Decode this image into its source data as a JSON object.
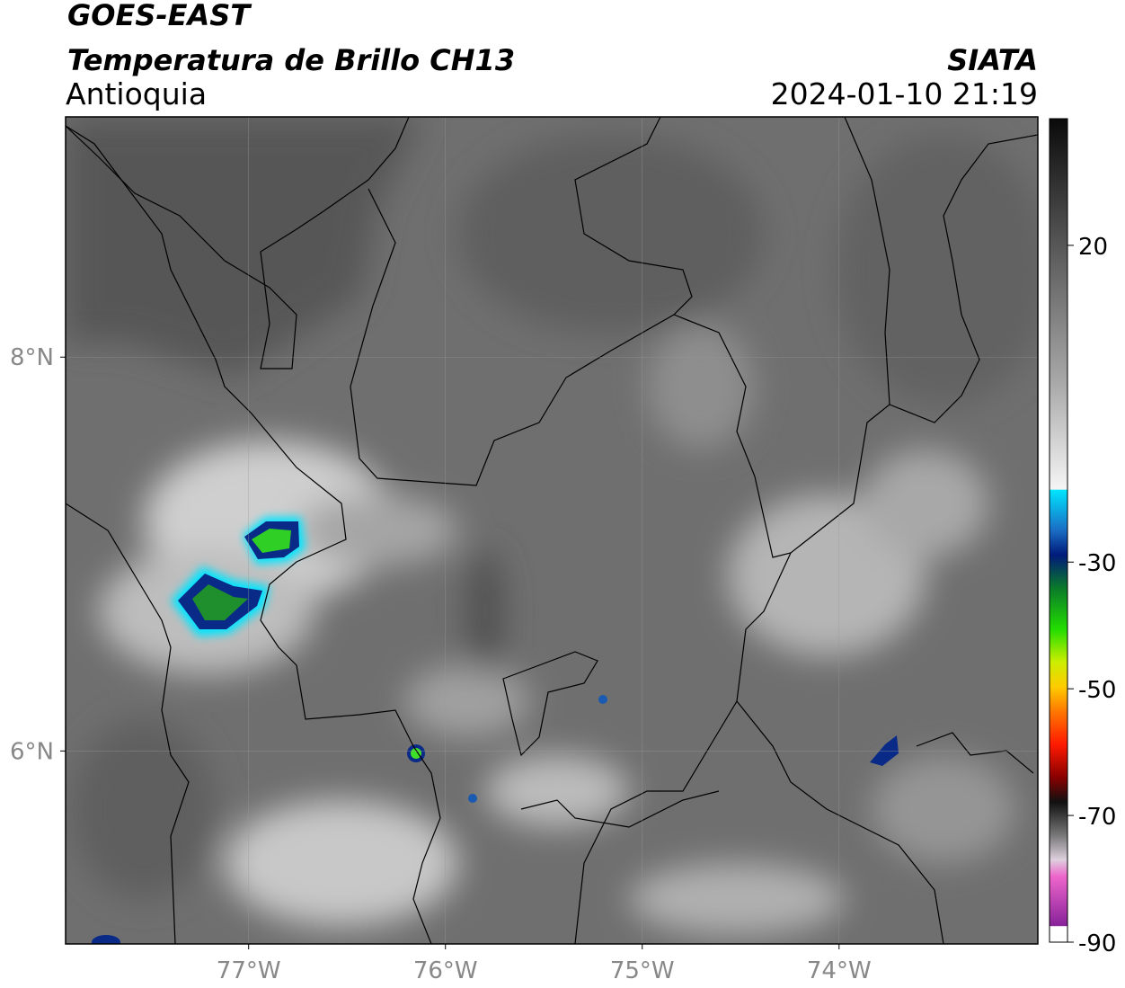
{
  "header": {
    "title": "GOES-EAST",
    "subtitle": "Temperatura de Brillo CH13",
    "region": "Antioquia",
    "source": "SIATA",
    "timestamp": "2024-01-10 21:19"
  },
  "map": {
    "xlim": [
      -77.93,
      -72.99
    ],
    "ylim": [
      5.02,
      9.22
    ],
    "xticks": [
      {
        "value": -77,
        "label": "77°W"
      },
      {
        "value": -76,
        "label": "76°W"
      },
      {
        "value": -75,
        "label": "75°W"
      },
      {
        "value": -74,
        "label": "74°W"
      }
    ],
    "yticks": [
      {
        "value": 6,
        "label": "6°N"
      },
      {
        "value": 8,
        "label": "8°N"
      }
    ]
  },
  "colorbar": {
    "lim": [
      -90,
      40
    ],
    "ticks": [
      20,
      -30,
      -50,
      -70,
      -90
    ]
  }
}
